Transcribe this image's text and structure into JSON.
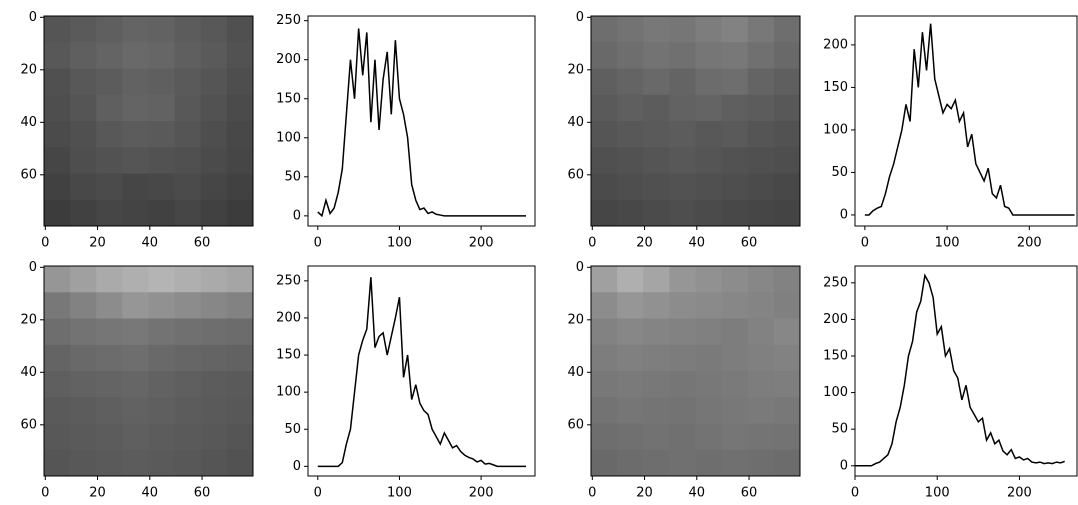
{
  "chart_data": [
    {
      "type": "image",
      "xlim": [
        -0.5,
        79.5
      ],
      "ylim": [
        79.5,
        -0.5
      ],
      "xticks": [
        0,
        20,
        40,
        60
      ],
      "yticks": [
        0,
        20,
        40,
        60
      ],
      "pixels": [
        [
          85,
          90,
          95,
          100,
          98,
          92,
          88,
          80
        ],
        [
          88,
          95,
          100,
          105,
          102,
          95,
          90,
          82
        ],
        [
          80,
          88,
          92,
          98,
          95,
          90,
          85,
          78
        ],
        [
          78,
          85,
          95,
          100,
          98,
          88,
          82,
          75
        ],
        [
          75,
          80,
          88,
          92,
          90,
          85,
          78,
          72
        ],
        [
          70,
          78,
          82,
          85,
          82,
          80,
          75,
          70
        ],
        [
          65,
          72,
          75,
          70,
          72,
          75,
          70,
          65
        ],
        [
          60,
          65,
          70,
          68,
          65,
          70,
          65,
          60
        ]
      ]
    },
    {
      "type": "line",
      "color": "#000000",
      "xlim": [
        -12,
        266
      ],
      "ylim": [
        -13,
        256
      ],
      "xticks": [
        0,
        100,
        200
      ],
      "yticks": [
        0,
        50,
        100,
        150,
        200,
        250
      ],
      "x": [
        0,
        5,
        10,
        15,
        20,
        25,
        30,
        35,
        40,
        45,
        50,
        55,
        60,
        65,
        70,
        75,
        80,
        85,
        90,
        95,
        100,
        105,
        110,
        115,
        120,
        125,
        130,
        135,
        140,
        145,
        150,
        155,
        160,
        165,
        170,
        175,
        180,
        185,
        190,
        195,
        200,
        205,
        210,
        215,
        220,
        225,
        230,
        235,
        240,
        245,
        250,
        255
      ],
      "values": [
        5,
        0,
        20,
        3,
        10,
        30,
        60,
        130,
        200,
        150,
        240,
        180,
        235,
        120,
        200,
        110,
        175,
        210,
        130,
        225,
        150,
        130,
        100,
        40,
        20,
        8,
        10,
        3,
        5,
        2,
        1,
        0,
        0,
        0,
        0,
        0,
        0,
        0,
        0,
        0,
        0,
        0,
        0,
        0,
        0,
        0,
        0,
        0,
        0,
        0,
        0,
        0
      ]
    },
    {
      "type": "image",
      "xlim": [
        -0.5,
        79.5
      ],
      "ylim": [
        79.5,
        -0.5
      ],
      "xticks": [
        0,
        20,
        40,
        60
      ],
      "yticks": [
        0,
        20,
        40,
        60
      ],
      "pixels": [
        [
          110,
          115,
          120,
          118,
          125,
          130,
          120,
          110
        ],
        [
          105,
          110,
          115,
          112,
          118,
          120,
          112,
          105
        ],
        [
          95,
          100,
          105,
          100,
          108,
          110,
          100,
          95
        ],
        [
          90,
          95,
          92,
          98,
          100,
          95,
          92,
          88
        ],
        [
          85,
          88,
          90,
          92,
          88,
          90,
          85,
          82
        ],
        [
          80,
          82,
          85,
          88,
          85,
          82,
          80,
          78
        ],
        [
          75,
          78,
          80,
          82,
          80,
          78,
          75,
          72
        ],
        [
          70,
          72,
          75,
          78,
          75,
          72,
          70,
          68
        ]
      ]
    },
    {
      "type": "line",
      "color": "#000000",
      "xlim": [
        -12,
        258
      ],
      "ylim": [
        -13,
        234
      ],
      "xticks": [
        0,
        100,
        200
      ],
      "yticks": [
        0,
        50,
        100,
        150,
        200
      ],
      "x": [
        0,
        5,
        10,
        15,
        20,
        25,
        30,
        35,
        40,
        45,
        50,
        55,
        60,
        65,
        70,
        75,
        80,
        85,
        90,
        95,
        100,
        105,
        110,
        115,
        120,
        125,
        130,
        135,
        140,
        145,
        150,
        155,
        160,
        165,
        170,
        175,
        180,
        185,
        190,
        195,
        200,
        205,
        210,
        215,
        220,
        225,
        230,
        235,
        240,
        245,
        250,
        255
      ],
      "values": [
        0,
        0,
        5,
        8,
        10,
        25,
        45,
        60,
        80,
        100,
        130,
        110,
        195,
        150,
        215,
        170,
        225,
        160,
        140,
        120,
        130,
        125,
        135,
        110,
        120,
        80,
        95,
        60,
        50,
        40,
        55,
        25,
        20,
        35,
        10,
        8,
        0,
        0,
        0,
        0,
        0,
        0,
        0,
        0,
        0,
        0,
        0,
        0,
        0,
        0,
        0,
        0
      ]
    },
    {
      "type": "image",
      "xlim": [
        -0.5,
        79.5
      ],
      "ylim": [
        79.5,
        -0.5
      ],
      "xticks": [
        0,
        20,
        40,
        60
      ],
      "yticks": [
        0,
        20,
        40,
        60
      ],
      "pixels": [
        [
          150,
          160,
          170,
          175,
          180,
          175,
          170,
          165
        ],
        [
          120,
          130,
          140,
          150,
          145,
          140,
          135,
          130
        ],
        [
          110,
          115,
          118,
          120,
          115,
          112,
          110,
          108
        ],
        [
          100,
          105,
          108,
          110,
          105,
          102,
          100,
          98
        ],
        [
          95,
          98,
          100,
          102,
          98,
          95,
          92,
          90
        ],
        [
          90,
          92,
          95,
          98,
          95,
          92,
          90,
          88
        ],
        [
          88,
          90,
          92,
          95,
          92,
          90,
          88,
          85
        ],
        [
          85,
          88,
          90,
          92,
          90,
          88,
          85,
          82
        ]
      ]
    },
    {
      "type": "line",
      "color": "#000000",
      "xlim": [
        -12,
        266
      ],
      "ylim": [
        -13,
        270
      ],
      "xticks": [
        0,
        100,
        200
      ],
      "yticks": [
        0,
        50,
        100,
        150,
        200,
        250
      ],
      "x": [
        0,
        5,
        10,
        15,
        20,
        25,
        30,
        35,
        40,
        45,
        50,
        55,
        60,
        65,
        70,
        75,
        80,
        85,
        90,
        95,
        100,
        105,
        110,
        115,
        120,
        125,
        130,
        135,
        140,
        145,
        150,
        155,
        160,
        165,
        170,
        175,
        180,
        185,
        190,
        195,
        200,
        205,
        210,
        215,
        220,
        225,
        230,
        235,
        240,
        245,
        250,
        255
      ],
      "values": [
        0,
        0,
        0,
        0,
        0,
        0,
        5,
        30,
        50,
        100,
        150,
        170,
        185,
        255,
        160,
        175,
        180,
        150,
        175,
        200,
        228,
        120,
        150,
        90,
        110,
        85,
        75,
        70,
        50,
        40,
        30,
        45,
        35,
        25,
        28,
        20,
        15,
        12,
        10,
        6,
        8,
        3,
        4,
        2,
        0,
        0,
        0,
        0,
        0,
        0,
        0,
        0
      ]
    },
    {
      "type": "image",
      "xlim": [
        -0.5,
        79.5
      ],
      "ylim": [
        79.5,
        -0.5
      ],
      "xticks": [
        0,
        20,
        40,
        60
      ],
      "yticks": [
        0,
        20,
        40,
        60
      ],
      "pixels": [
        [
          160,
          175,
          165,
          150,
          145,
          140,
          135,
          130
        ],
        [
          140,
          150,
          145,
          140,
          138,
          135,
          132,
          128
        ],
        [
          130,
          135,
          132,
          130,
          128,
          125,
          130,
          135
        ],
        [
          125,
          128,
          126,
          124,
          122,
          125,
          128,
          130
        ],
        [
          120,
          122,
          120,
          118,
          120,
          122,
          125,
          126
        ],
        [
          115,
          118,
          116,
          115,
          118,
          120,
          122,
          120
        ],
        [
          110,
          112,
          114,
          112,
          115,
          118,
          116,
          115
        ],
        [
          105,
          108,
          110,
          112,
          110,
          112,
          110,
          108
        ]
      ]
    },
    {
      "type": "line",
      "color": "#000000",
      "xlim": [
        0,
        270
      ],
      "ylim": [
        -14,
        273
      ],
      "xticks": [
        0,
        100,
        200
      ],
      "yticks": [
        0,
        50,
        100,
        150,
        200,
        250
      ],
      "x": [
        0,
        5,
        10,
        15,
        20,
        25,
        30,
        35,
        40,
        45,
        50,
        55,
        60,
        65,
        70,
        75,
        80,
        85,
        90,
        95,
        100,
        105,
        110,
        115,
        120,
        125,
        130,
        135,
        140,
        145,
        150,
        155,
        160,
        165,
        170,
        175,
        180,
        185,
        190,
        195,
        200,
        205,
        210,
        215,
        220,
        225,
        230,
        235,
        240,
        245,
        250,
        255
      ],
      "values": [
        0,
        0,
        0,
        0,
        0,
        3,
        5,
        10,
        15,
        30,
        60,
        80,
        110,
        150,
        170,
        210,
        225,
        260,
        250,
        230,
        180,
        190,
        150,
        160,
        130,
        120,
        90,
        110,
        80,
        70,
        60,
        65,
        35,
        45,
        30,
        35,
        20,
        15,
        22,
        10,
        12,
        8,
        10,
        5,
        4,
        5,
        3,
        4,
        3,
        5,
        4,
        6
      ]
    }
  ]
}
